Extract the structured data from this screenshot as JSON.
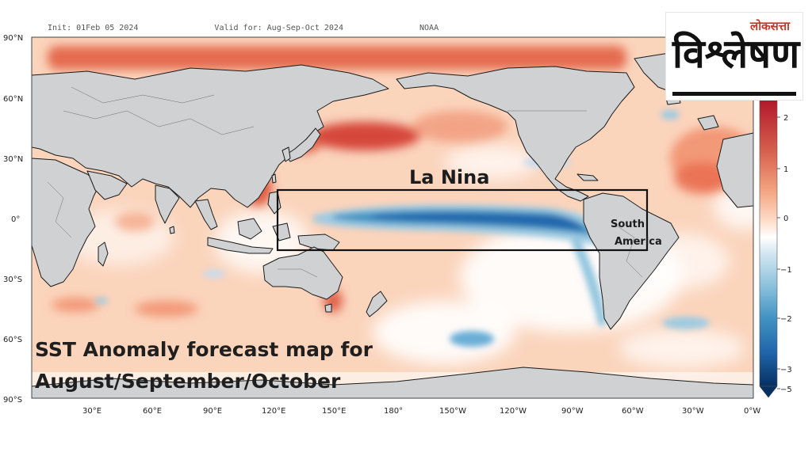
{
  "map": {
    "title": "SST Anomaly forecast map",
    "header_fragments": [
      "Init: 01Feb 05 2024",
      "Valid for: Aug-Sep-Oct 2024",
      "NOAA"
    ],
    "lat_labels": [
      "90°N",
      "60°N",
      "30°N",
      "0°",
      "30°S",
      "60°S",
      "90°S"
    ],
    "lon_labels": [
      "30°E",
      "60°E",
      "90°E",
      "120°E",
      "150°E",
      "180°",
      "150°W",
      "120°W",
      "90°W",
      "60°W",
      "30°W",
      "0°W"
    ],
    "annotation_la_nina": "La Nina",
    "annotation_south": "South",
    "annotation_america": "America",
    "caption_line1": "SST Anomaly forecast map for",
    "caption_line2": "August/September/October"
  },
  "colorbar": {
    "labels": [
      "2",
      "1",
      "0",
      "−1",
      "−2",
      "−3",
      "−5"
    ],
    "colors": [
      "#b2182b",
      "#d6604d",
      "#f4a582",
      "#fddbc7",
      "#ffffff",
      "#d1e5f0",
      "#92c5de",
      "#4393c3",
      "#2166ac",
      "#053061"
    ]
  },
  "logo": {
    "small_text": "लोकसत्ता",
    "main_text": "विश्लेषण"
  }
}
